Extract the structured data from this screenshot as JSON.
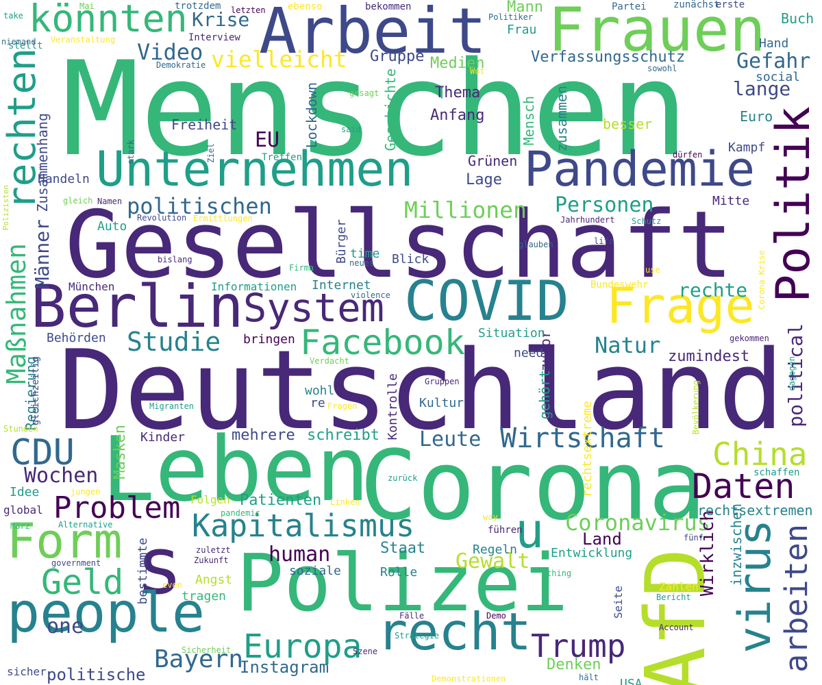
{
  "palette": {
    "c1": "#440154",
    "c2": "#482878",
    "c3": "#3e4989",
    "c4": "#31688e",
    "c5": "#26828e",
    "c6": "#1f9e89",
    "c7": "#35b779",
    "c8": "#6ece58",
    "c9": "#b5de2b",
    "c10": "#fde725"
  },
  "words": [
    {
      "text": "Menschen",
      "color": "c7",
      "weight": 1.0
    },
    {
      "text": "Deutschland",
      "color": "c2",
      "weight": 0.95
    },
    {
      "text": "Gesellschaft",
      "color": "c2",
      "weight": 0.9
    },
    {
      "text": "Corona",
      "color": "c7",
      "weight": 0.8
    },
    {
      "text": "Polizei",
      "color": "c7",
      "weight": 0.78
    },
    {
      "text": "Leben",
      "color": "c7",
      "weight": 0.75
    },
    {
      "text": "AfD",
      "color": "c9",
      "weight": 0.75
    },
    {
      "text": "s",
      "color": "c2",
      "weight": 0.72
    },
    {
      "text": "Arbeit",
      "color": "c3",
      "weight": 0.62
    },
    {
      "text": "Frauen",
      "color": "c8",
      "weight": 0.6
    },
    {
      "text": "Berlin",
      "color": "c2",
      "weight": 0.55
    },
    {
      "text": "COVID",
      "color": "c5",
      "weight": 0.5
    },
    {
      "text": "Unternehmen",
      "color": "c6",
      "weight": 0.48
    },
    {
      "text": "Pandemie",
      "color": "c3",
      "weight": 0.46
    },
    {
      "text": "people",
      "color": "c5",
      "weight": 0.46
    },
    {
      "text": "Politik",
      "color": "c1",
      "weight": 0.45
    },
    {
      "text": "Frage",
      "color": "c10",
      "weight": 0.42
    },
    {
      "text": "recht",
      "color": "c5",
      "weight": 0.42
    },
    {
      "text": "Form",
      "color": "c8",
      "weight": 0.4
    },
    {
      "text": "virus",
      "color": "c5",
      "weight": 0.4
    },
    {
      "text": "u",
      "color": "c6",
      "weight": 0.4
    },
    {
      "text": "System",
      "color": "c2",
      "weight": 0.36
    },
    {
      "text": "rechten",
      "color": "c6",
      "weight": 0.36
    },
    {
      "text": "arbeiten",
      "color": "c3",
      "weight": 0.34
    },
    {
      "text": "Facebook",
      "color": "c7",
      "weight": 0.33
    },
    {
      "text": "könnten",
      "color": "c7",
      "weight": 0.32
    },
    {
      "text": "Kapitalismus",
      "color": "c5",
      "weight": 0.32
    },
    {
      "text": "Wirtschaft",
      "color": "c4",
      "weight": 0.3
    },
    {
      "text": "Daten",
      "color": "c1",
      "weight": 0.3
    },
    {
      "text": "China",
      "color": "c9",
      "weight": 0.3
    },
    {
      "text": "Geld",
      "color": "c7",
      "weight": 0.3
    },
    {
      "text": "Europa",
      "color": "c6",
      "weight": 0.3
    },
    {
      "text": "CDU",
      "color": "c4",
      "weight": 0.29
    },
    {
      "text": "Trump",
      "color": "c2",
      "weight": 0.28
    },
    {
      "text": "Maßnahmen",
      "color": "c7",
      "weight": 0.28
    },
    {
      "text": "Problem",
      "color": "c1",
      "weight": 0.26
    },
    {
      "text": "Bayern",
      "color": "c4",
      "weight": 0.23
    },
    {
      "text": "Studie",
      "color": "c5",
      "weight": 0.23
    },
    {
      "text": "Coronavirus",
      "color": "c8",
      "weight": 0.22
    },
    {
      "text": "Millionen",
      "color": "c8",
      "weight": 0.22
    },
    {
      "text": "political",
      "color": "c2",
      "weight": 0.2
    },
    {
      "text": "Video",
      "color": "c4",
      "weight": 0.2
    },
    {
      "text": "politischen",
      "color": "c4",
      "weight": 0.2
    },
    {
      "text": "Personen",
      "color": "c6",
      "weight": 0.2
    },
    {
      "text": "Gefahr",
      "color": "c4",
      "weight": 0.19
    },
    {
      "text": "Gewalt",
      "color": "c9",
      "weight": 0.19
    },
    {
      "text": "Natur",
      "color": "c5",
      "weight": 0.19
    },
    {
      "text": "Wochen",
      "color": "c2",
      "weight": 0.19
    },
    {
      "text": "Leute",
      "color": "c4",
      "weight": 0.19
    },
    {
      "text": "vielleicht",
      "color": "c10",
      "weight": 0.19
    },
    {
      "text": "Krise",
      "color": "c4",
      "weight": 0.18
    },
    {
      "text": "lange",
      "color": "c3",
      "weight": 0.18
    },
    {
      "text": "human",
      "color": "c1",
      "weight": 0.18
    },
    {
      "text": "one",
      "color": "c3",
      "weight": 0.17
    },
    {
      "text": "Wirklich",
      "color": "c1",
      "weight": 0.17
    },
    {
      "text": "rechte",
      "color": "c6",
      "weight": 0.17
    },
    {
      "text": "Männer",
      "color": "c3",
      "weight": 0.17
    },
    {
      "text": "EU",
      "color": "c1",
      "weight": 0.16
    },
    {
      "text": "Instagram",
      "color": "c4",
      "weight": 0.16
    },
    {
      "text": "politische",
      "color": "c3",
      "weight": 0.15
    },
    {
      "text": "Land",
      "color": "c1",
      "weight": 0.15
    },
    {
      "text": "Mann",
      "color": "c8",
      "weight": 0.14
    },
    {
      "text": "Denken",
      "color": "c8",
      "weight": 0.14
    },
    {
      "text": "Masken",
      "color": "c8",
      "weight": 0.14
    },
    {
      "text": "Patienten",
      "color": "c6",
      "weight": 0.14
    },
    {
      "text": "Thema",
      "color": "c2",
      "weight": 0.14
    },
    {
      "text": "Anfang",
      "color": "c2",
      "weight": 0.14
    },
    {
      "text": "Gruppe",
      "color": "c3",
      "weight": 0.14
    },
    {
      "text": "Medien",
      "color": "c8",
      "weight": 0.14
    },
    {
      "text": "Staat",
      "color": "c5",
      "weight": 0.13
    },
    {
      "text": "schreibt",
      "color": "c6",
      "weight": 0.13
    },
    {
      "text": "Verfassungsschutz",
      "color": "c4",
      "weight": 0.13
    },
    {
      "text": "mehrere",
      "color": "c3",
      "weight": 0.13
    },
    {
      "text": "Lage",
      "color": "c3",
      "weight": 0.13
    },
    {
      "text": "zumindest",
      "color": "c2",
      "weight": 0.13
    },
    {
      "text": "Zusammenhang",
      "color": "c3",
      "weight": 0.13
    },
    {
      "text": "Geschichte",
      "color": "c7",
      "weight": 0.13
    },
    {
      "text": "Lockdown",
      "color": "c4",
      "weight": 0.13
    },
    {
      "text": "Euro",
      "color": "c5",
      "weight": 0.13
    },
    {
      "text": "Buch",
      "color": "c6",
      "weight": 0.13
    },
    {
      "text": "Grünen",
      "color": "c2",
      "weight": 0.13
    },
    {
      "text": "besser",
      "color": "c9",
      "weight": 0.12
    },
    {
      "text": "rechtsextremen",
      "color": "c5",
      "weight": 0.12
    },
    {
      "text": "Freiheit",
      "color": "c3",
      "weight": 0.12
    },
    {
      "text": "inzwischen",
      "color": "c5",
      "weight": 0.12
    },
    {
      "text": "Mensch",
      "color": "c7",
      "weight": 0.12
    },
    {
      "text": "zusammen",
      "color": "c5",
      "weight": 0.12
    },
    {
      "text": "zuvor",
      "color": "c2",
      "weight": 0.12
    },
    {
      "text": "gehört",
      "color": "c6",
      "weight": 0.12
    },
    {
      "text": "Regierung",
      "color": "c5",
      "weight": 0.12
    },
    {
      "text": "Kinder",
      "color": "c2",
      "weight": 0.11
    },
    {
      "text": "Behörden",
      "color": "c3",
      "weight": 0.11
    },
    {
      "text": "Handeln",
      "color": "c3",
      "weight": 0.11
    },
    {
      "text": "Frau",
      "color": "c6",
      "weight": 0.11
    },
    {
      "text": "Kampf",
      "color": "c3",
      "weight": 0.11
    },
    {
      "text": "Mitte",
      "color": "c2",
      "weight": 0.11
    },
    {
      "text": "social",
      "color": "c4",
      "weight": 0.11
    },
    {
      "text": "Hand",
      "color": "c4",
      "weight": 0.11
    },
    {
      "text": "Rolle",
      "color": "c5",
      "weight": 0.11
    },
    {
      "text": "soziale",
      "color": "c4",
      "weight": 0.11
    },
    {
      "text": "Kontrolle",
      "color": "c2",
      "weight": 0.11
    },
    {
      "text": "Blick",
      "color": "c3",
      "weight": 0.11
    },
    {
      "text": "Idee",
      "color": "c6",
      "weight": 0.11
    },
    {
      "text": "Auto",
      "color": "c6",
      "weight": 0.11
    },
    {
      "text": "Internet",
      "color": "c5",
      "weight": 0.11
    },
    {
      "text": "need",
      "color": "c3",
      "weight": 0.11
    },
    {
      "text": "Kultur",
      "color": "c4",
      "weight": 0.11
    },
    {
      "text": "tragen",
      "color": "c7",
      "weight": 0.11
    },
    {
      "text": "bestimmte",
      "color": "c3",
      "weight": 0.1
    },
    {
      "text": "Angst",
      "color": "c9",
      "weight": 0.1
    },
    {
      "text": "Regeln",
      "color": "c5",
      "weight": 0.1
    },
    {
      "text": "Entwicklung",
      "color": "c6",
      "weight": 0.1
    },
    {
      "text": "USA",
      "color": "c6",
      "weight": 0.1
    },
    {
      "text": "rechtsextreme",
      "color": "c10",
      "weight": 0.1
    },
    {
      "text": "wohl",
      "color": "c5",
      "weight": 0.1
    },
    {
      "text": "re",
      "color": "c3",
      "weight": 0.1
    },
    {
      "text": "Situation",
      "color": "c6",
      "weight": 0.1
    },
    {
      "text": "time",
      "color": "c6",
      "weight": 0.1
    },
    {
      "text": "Bürger",
      "color": "c3",
      "weight": 0.1
    },
    {
      "text": "bringen",
      "color": "c1",
      "weight": 0.1
    },
    {
      "text": "München",
      "color": "c2",
      "weight": 0.1
    },
    {
      "text": "Informationen",
      "color": "c6",
      "weight": 0.1
    },
    {
      "text": "global",
      "color": "c2",
      "weight": 0.09
    },
    {
      "text": "sicher",
      "color": "c3",
      "weight": 0.09
    },
    {
      "text": "Zahlen",
      "color": "c10",
      "weight": 0.09
    },
    {
      "text": "Folgen",
      "color": "c9",
      "weight": 0.09
    },
    {
      "text": "Seite",
      "color": "c3",
      "weight": 0.09
    },
    {
      "text": "gleichzeitig",
      "color": "c3",
      "weight": 0.09
    },
    {
      "text": "Treffen",
      "color": "c6",
      "weight": 0.09
    },
    {
      "text": "schaffen",
      "color": "c6",
      "weight": 0.09
    },
    {
      "text": "führen",
      "color": "c2",
      "weight": 0.09
    },
    {
      "text": "Interview",
      "color": "c2",
      "weight": 0.09
    },
    {
      "text": "Partei",
      "color": "c4",
      "weight": 0.09
    },
    {
      "text": "Bundeswehr",
      "color": "c10",
      "weight": 0.09
    },
    {
      "text": "stellt",
      "color": "c6",
      "weight": 0.09
    },
    {
      "text": "erste",
      "color": "c3",
      "weight": 0.09
    },
    {
      "text": "zunächst",
      "color": "c4",
      "weight": 0.09
    },
    {
      "text": "Jahrhundert",
      "color": "c2",
      "weight": 0.08
    },
    {
      "text": "Account",
      "color": "c2",
      "weight": 0.08
    },
    {
      "text": "bekommen",
      "color": "c2",
      "weight": 0.08
    },
    {
      "text": "ebenso",
      "color": "c10",
      "weight": 0.08
    },
    {
      "text": "Revolution",
      "color": "c3",
      "weight": 0.08
    },
    {
      "text": "Ermittlungen",
      "color": "c10",
      "weight": 0.08
    },
    {
      "text": "Namen",
      "color": "c2",
      "weight": 0.08
    },
    {
      "text": "gleich",
      "color": "c8",
      "weight": 0.08
    },
    {
      "text": "neues",
      "color": "c4",
      "weight": 0.08
    },
    {
      "text": "Gruppen",
      "color": "c2",
      "weight": 0.08
    },
    {
      "text": "Fragen",
      "color": "c10",
      "weight": 0.08
    },
    {
      "text": "Migranten",
      "color": "c6",
      "weight": 0.08
    },
    {
      "text": "Bevölkerung",
      "color": "c9",
      "weight": 0.08
    },
    {
      "text": "Sicherheit",
      "color": "c8",
      "weight": 0.08
    },
    {
      "text": "Strategie",
      "color": "c6",
      "weight": 0.08
    },
    {
      "text": "Szene",
      "color": "c2",
      "weight": 0.08
    },
    {
      "text": "Fälle",
      "color": "c2",
      "weight": 0.08
    },
    {
      "text": "Linken",
      "color": "c10",
      "weight": 0.08
    },
    {
      "text": "Bericht",
      "color": "c6",
      "weight": 0.08
    },
    {
      "text": "zurück",
      "color": "c6",
      "weight": 0.08
    },
    {
      "text": "Demo",
      "color": "c1",
      "weight": 0.08
    },
    {
      "text": "thing",
      "color": "c7",
      "weight": 0.08
    },
    {
      "text": "glauben",
      "color": "c4",
      "weight": 0.07
    },
    {
      "text": "Schutz",
      "color": "c6",
      "weight": 0.07
    },
    {
      "text": "bislang",
      "color": "c2",
      "weight": 0.07
    },
    {
      "text": "stark",
      "color": "c4",
      "weight": 0.07
    },
    {
      "text": "Ziel",
      "color": "c4",
      "weight": 0.07
    },
    {
      "text": "said",
      "color": "c6",
      "weight": 0.07
    },
    {
      "text": "gesagt",
      "color": "c8",
      "weight": 0.07
    },
    {
      "text": "Wut",
      "color": "c10",
      "weight": 0.07
    },
    {
      "text": "sowohl",
      "color": "c4",
      "weight": 0.07
    },
    {
      "text": "life",
      "color": "c3",
      "weight": 0.07
    },
    {
      "text": "dürfen",
      "color": "c1",
      "weight": 0.07
    },
    {
      "text": "Politiker",
      "color": "c4",
      "weight": 0.07
    },
    {
      "text": "trotzdem",
      "color": "c4",
      "weight": 0.07
    },
    {
      "text": "letzten",
      "color": "c1",
      "weight": 0.07
    },
    {
      "text": "Mai",
      "color": "c8",
      "weight": 0.07
    },
    {
      "text": "take",
      "color": "c6",
      "weight": 0.07
    },
    {
      "text": "niemand",
      "color": "c4",
      "weight": 0.07
    },
    {
      "text": "Veranstaltung",
      "color": "c10",
      "weight": 0.07
    },
    {
      "text": "Demokratie",
      "color": "c4",
      "weight": 0.07
    },
    {
      "text": "Polizisten",
      "color": "c9",
      "weight": 0.07
    },
    {
      "text": "Firma",
      "color": "c7",
      "weight": 0.07
    },
    {
      "text": "violence",
      "color": "c4",
      "weight": 0.07
    },
    {
      "text": "Verdacht",
      "color": "c8",
      "weight": 0.07
    },
    {
      "text": "gekommen",
      "color": "c2",
      "weight": 0.07
    },
    {
      "text": "dagegen",
      "color": "c6",
      "weight": 0.07
    },
    {
      "text": "Corona Krise",
      "color": "c10",
      "weight": 0.07
    },
    {
      "text": "use",
      "color": "c10",
      "weight": 0.07
    },
    {
      "text": "Stunden",
      "color": "c9",
      "weight": 0.07
    },
    {
      "text": "jungen",
      "color": "c10",
      "weight": 0.07
    },
    {
      "text": "März",
      "color": "c7",
      "weight": 0.07
    },
    {
      "text": "Alternative",
      "color": "c6",
      "weight": 0.07
    },
    {
      "text": "pandemic",
      "color": "c7",
      "weight": 0.07
    },
    {
      "text": "way",
      "color": "c10",
      "weight": 0.07
    },
    {
      "text": "fünf",
      "color": "c3",
      "weight": 0.07
    },
    {
      "text": "zuletzt",
      "color": "c2",
      "weight": 0.07
    },
    {
      "text": "government",
      "color": "c3",
      "weight": 0.07
    },
    {
      "text": "Zukunft",
      "color": "c2",
      "weight": 0.07
    },
    {
      "text": "even",
      "color": "c10",
      "weight": 0.07
    },
    {
      "text": "hält",
      "color": "c4",
      "weight": 0.07
    },
    {
      "text": "Demonstrationen",
      "color": "c10",
      "weight": 0.07
    }
  ]
}
